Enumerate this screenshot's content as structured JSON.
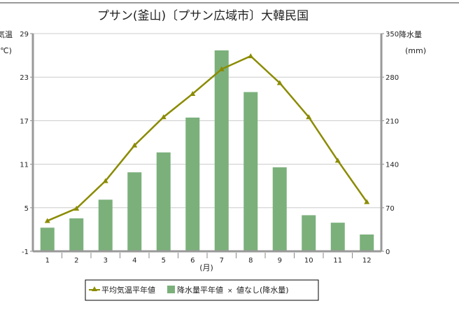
{
  "chart_data": {
    "type": "bar+line",
    "title": "プサン(釜山)〔プサン広域市〕大韓民国",
    "xlabel": "(月)",
    "ylabel_left": "気温",
    "ylabel_left_unit": "(℃)",
    "ylabel_right": "降水量",
    "ylabel_right_unit": "(mm)",
    "categories": [
      "1",
      "2",
      "3",
      "4",
      "5",
      "6",
      "7",
      "8",
      "9",
      "10",
      "11",
      "12"
    ],
    "ylim_left": [
      -1,
      29
    ],
    "yticks_left": [
      "29",
      "23",
      "17",
      "11",
      "5",
      "-1"
    ],
    "ylim_right": [
      0,
      350
    ],
    "yticks_right": [
      "350",
      "280",
      "210",
      "140",
      "70",
      "0"
    ],
    "grid": true,
    "legend_position": "bottom",
    "series": [
      {
        "name": "平均気温平年値",
        "type": "line",
        "axis": "left",
        "color": "#8b8b00",
        "values": [
          3.2,
          4.9,
          8.7,
          13.6,
          17.5,
          20.7,
          24.1,
          25.9,
          22.2,
          17.5,
          11.5,
          5.8
        ]
      },
      {
        "name": "降水量平年値",
        "type": "bar",
        "axis": "right",
        "color": "#7bb07b",
        "values": [
          38,
          53,
          83,
          127,
          159,
          215,
          323,
          256,
          135,
          58,
          46,
          27
        ]
      }
    ],
    "legend": [
      "平均気温平年値",
      "降水量平年値",
      "値なし(降水量)"
    ],
    "legend_nodata_marker": "×"
  }
}
